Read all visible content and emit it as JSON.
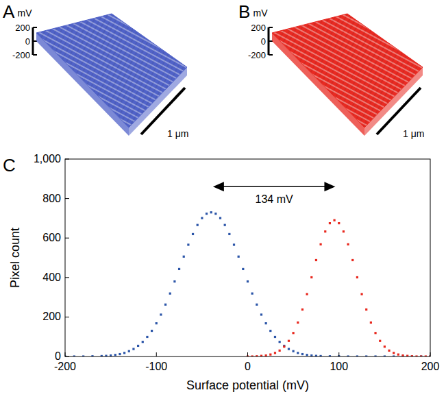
{
  "chart_data": [
    {
      "label": "A",
      "type": "surface",
      "z_label": "mV",
      "zlim": [
        -200,
        200
      ],
      "zticks": [
        -200,
        0,
        200
      ],
      "scale_bar": "1 μm",
      "color": "#5062c8"
    },
    {
      "label": "B",
      "type": "surface",
      "z_label": "mV",
      "zlim": [
        -200,
        200
      ],
      "zticks": [
        -200,
        0,
        200
      ],
      "scale_bar": "1 μm",
      "color": "#e82a22"
    },
    {
      "label": "C",
      "type": "scatter",
      "x_label": "Surface potential (mV)",
      "y_label": "Pixel count",
      "xlim": [
        -200,
        200
      ],
      "xticks": [
        -200,
        -100,
        0,
        100,
        200
      ],
      "ylim": [
        0,
        1000
      ],
      "yticks": [
        0,
        200,
        400,
        600,
        800,
        {
          "value": 1000,
          "label": "1,000"
        }
      ],
      "grid": false,
      "annotation": {
        "text": "134 mV",
        "x": [
          -38,
          96
        ],
        "y": 860
      },
      "series": [
        {
          "color": "#2b55a8",
          "marker": "square",
          "x": [
            -200,
            -190,
            -180,
            -170,
            -160,
            -155,
            -150,
            -145,
            -140,
            -135,
            -130,
            -125,
            -120,
            -115,
            -110,
            -105,
            -100,
            -95,
            -90,
            -85,
            -80,
            -75,
            -70,
            -65,
            -60,
            -55,
            -50,
            -45,
            -40,
            -35,
            -30,
            -25,
            -20,
            -15,
            -10,
            -5,
            0,
            5,
            10,
            15,
            20,
            25,
            30,
            35,
            40,
            45,
            50,
            55,
            60,
            65,
            70,
            75,
            80,
            90,
            100,
            110,
            120,
            130,
            140,
            150,
            160,
            170,
            180,
            190,
            200
          ],
          "values": [
            0,
            0,
            0,
            1,
            2,
            3,
            5,
            8,
            12,
            18,
            27,
            38,
            54,
            74,
            99,
            130,
            168,
            212,
            263,
            319,
            380,
            443,
            506,
            566,
            620,
            666,
            701,
            723,
            730,
            723,
            701,
            666,
            620,
            566,
            506,
            443,
            380,
            319,
            263,
            212,
            168,
            130,
            99,
            74,
            54,
            38,
            27,
            18,
            12,
            8,
            5,
            3,
            2,
            1,
            1,
            0,
            0,
            0,
            0,
            0,
            0,
            0,
            0,
            0,
            0
          ]
        },
        {
          "color": "#e8281e",
          "marker": "square",
          "x": [
            0,
            5,
            10,
            15,
            20,
            25,
            30,
            35,
            40,
            45,
            50,
            55,
            60,
            65,
            70,
            75,
            80,
            85,
            90,
            95,
            100,
            105,
            110,
            115,
            120,
            125,
            130,
            135,
            140,
            145,
            150,
            155,
            160,
            165,
            170,
            175,
            180,
            185,
            190,
            195,
            200
          ],
          "values": [
            0,
            0,
            1,
            3,
            5,
            10,
            18,
            30,
            50,
            79,
            119,
            172,
            238,
            316,
            401,
            488,
            568,
            633,
            675,
            690,
            675,
            633,
            568,
            488,
            401,
            316,
            238,
            172,
            119,
            79,
            50,
            30,
            18,
            10,
            5,
            3,
            1,
            0,
            0,
            0,
            0
          ]
        }
      ]
    }
  ]
}
